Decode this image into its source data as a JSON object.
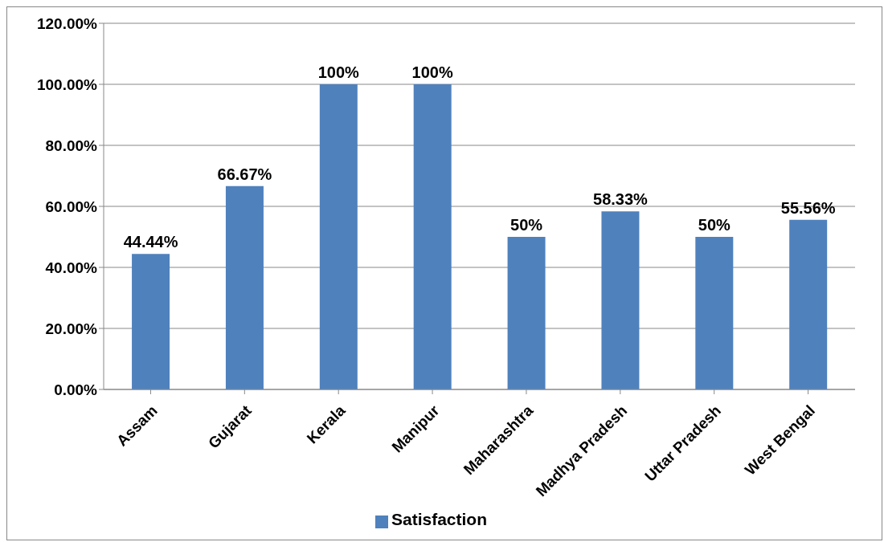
{
  "chart_data": {
    "type": "bar",
    "categories": [
      "Assam",
      "Gujarat",
      "Kerala",
      "Manipur",
      "Maharashtra",
      "Madhya Pradesh",
      "Uttar Pradesh",
      "West Bengal"
    ],
    "series": [
      {
        "name": "Satisfaction",
        "color": "#4f81bd",
        "values": [
          44.44,
          66.67,
          100,
          100,
          50,
          58.33,
          50,
          55.56
        ],
        "value_labels": [
          "44.44%",
          "66.67%",
          "100%",
          "100%",
          "50%",
          "58.33%",
          "50%",
          "55.56%"
        ]
      }
    ],
    "ylim": [
      0,
      120
    ],
    "yticks": [
      {
        "value": 0,
        "label": "0.00%"
      },
      {
        "value": 20,
        "label": "20.00%"
      },
      {
        "value": 40,
        "label": "40.00%"
      },
      {
        "value": 60,
        "label": "60.00%"
      },
      {
        "value": 80,
        "label": "80.00%"
      },
      {
        "value": 100,
        "label": "100.00%"
      },
      {
        "value": 120,
        "label": "120.00%"
      }
    ],
    "grid": "y",
    "legend": "bottom"
  }
}
